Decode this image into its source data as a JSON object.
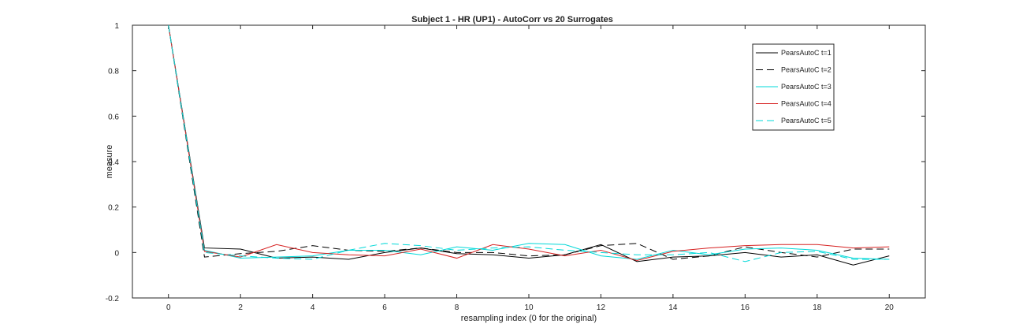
{
  "chart_data": {
    "type": "line",
    "title": "Subject 1 - HR (UP1) - AutoCorr vs 20 Surrogates",
    "xlabel": "resampling index (0 for the original)",
    "ylabel": "measure",
    "xlim": [
      -1,
      21
    ],
    "ylim": [
      -0.2,
      1
    ],
    "xticks": [
      0,
      2,
      4,
      6,
      8,
      10,
      12,
      14,
      16,
      18,
      20
    ],
    "yticks": [
      -0.2,
      0,
      0.2,
      0.4,
      0.6,
      0.8,
      1
    ],
    "grid": false,
    "legend_position": "top-right",
    "x": [
      0,
      1,
      2,
      3,
      4,
      5,
      6,
      7,
      8,
      9,
      10,
      11,
      12,
      13,
      14,
      15,
      16,
      17,
      18,
      19,
      20
    ],
    "series": [
      {
        "name": "PearsAutoC t=1",
        "color": "#000000",
        "dash": "solid",
        "values": [
          1.0,
          0.02,
          0.015,
          -0.025,
          -0.02,
          -0.03,
          0.0,
          0.02,
          -0.005,
          -0.01,
          -0.025,
          -0.01,
          0.035,
          -0.04,
          -0.02,
          -0.015,
          0.0,
          -0.02,
          -0.01,
          -0.055,
          -0.015
        ]
      },
      {
        "name": "PearsAutoC t=2",
        "color": "#000000",
        "dash": "dashed",
        "values": [
          1.0,
          -0.02,
          -0.005,
          0.005,
          0.03,
          0.01,
          0.005,
          0.02,
          0.0,
          0.0,
          -0.015,
          -0.01,
          0.03,
          0.04,
          -0.03,
          -0.015,
          0.025,
          0.0,
          -0.02,
          0.015,
          0.015
        ]
      },
      {
        "name": "PearsAutoC t=3",
        "color": "#00d8d8",
        "dash": "solid",
        "values": [
          1.0,
          0.01,
          -0.025,
          -0.02,
          -0.015,
          0.01,
          0.01,
          -0.01,
          0.025,
          0.01,
          0.04,
          0.035,
          -0.015,
          -0.03,
          0.01,
          -0.01,
          0.015,
          0.02,
          0.01,
          -0.025,
          -0.03
        ]
      },
      {
        "name": "PearsAutoC t=4",
        "color": "#d62020",
        "dash": "solid",
        "values": [
          1.0,
          0.005,
          -0.02,
          0.035,
          0.0,
          -0.01,
          -0.015,
          0.015,
          -0.025,
          0.035,
          0.015,
          -0.015,
          0.01,
          -0.035,
          0.005,
          0.02,
          0.03,
          0.035,
          0.035,
          0.02,
          0.025
        ]
      },
      {
        "name": "PearsAutoC t=5",
        "color": "#00d8d8",
        "dash": "dashed",
        "values": [
          1.0,
          0.0,
          -0.015,
          -0.025,
          -0.03,
          0.01,
          0.04,
          0.03,
          0.01,
          0.02,
          0.025,
          0.01,
          0.0,
          -0.01,
          -0.01,
          0.0,
          -0.04,
          0.0,
          0.005,
          -0.03,
          -0.03
        ]
      }
    ]
  }
}
